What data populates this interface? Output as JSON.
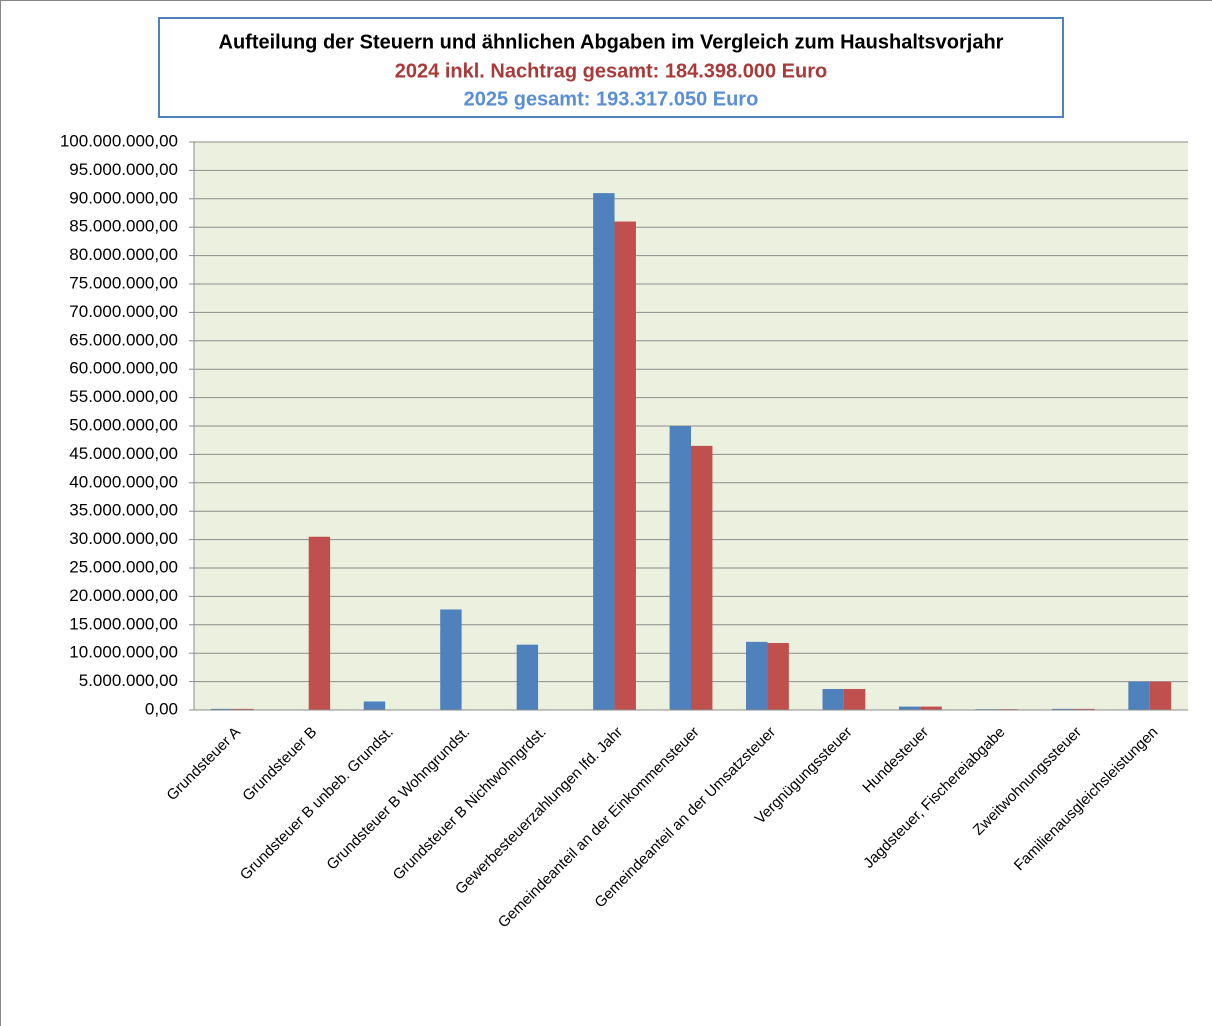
{
  "chart_data": {
    "type": "bar",
    "title": "Aufteilung der Steuern und ähnlichen Abgaben im Vergleich zum Haushaltsvorjahr",
    "subtitle": [
      "2024 inkl. Nachtrag gesamt: 184.398.000 Euro",
      "2025 gesamt: 193.317.050 Euro"
    ],
    "subtitle_colors": [
      "#a83b39",
      "#5a8ed5"
    ],
    "categories": [
      "Grundsteuer A",
      "Grundsteuer B",
      "Grundsteuer B unbeb. Grundst.",
      "Grundsteuer B Wohngrundst.",
      "Grundsteuer B Nichtwohngrdst.",
      "Gewerbesteuerzahlungen lfd. Jahr",
      "Gemeindeanteil an der Einkommensteuer",
      "Gemeindeanteil an der Umsatzsteuer",
      "Vergnügungssteuer",
      "Hundesteuer",
      "Jagdsteuer, Fischereiabgabe",
      "Zweitwohnungssteuer",
      "Familienausgleichsleistungen"
    ],
    "series": [
      {
        "color": "#4f81bd",
        "values": [
          200000,
          0,
          1500000,
          17700000,
          11500000,
          91000000,
          50000000,
          12000000,
          3700000,
          600000,
          150000,
          200000,
          5000000
        ]
      },
      {
        "color": "#c0504d",
        "values": [
          200000,
          30500000,
          0,
          0,
          0,
          86000000,
          46500000,
          11800000,
          3700000,
          600000,
          150000,
          200000,
          5000000
        ]
      }
    ],
    "ylim": [
      0,
      100000000
    ],
    "yticks": [
      {
        "value": 0,
        "label": "0,00"
      },
      {
        "value": 5000000,
        "label": "5.000.000,00"
      },
      {
        "value": 10000000,
        "label": "10.000.000,00"
      },
      {
        "value": 15000000,
        "label": "15.000.000,00"
      },
      {
        "value": 20000000,
        "label": "20.000.000,00"
      },
      {
        "value": 25000000,
        "label": "25.000.000,00"
      },
      {
        "value": 30000000,
        "label": "30.000.000,00"
      },
      {
        "value": 35000000,
        "label": "35.000.000,00"
      },
      {
        "value": 40000000,
        "label": "40.000.000,00"
      },
      {
        "value": 45000000,
        "label": "45.000.000,00"
      },
      {
        "value": 50000000,
        "label": "50.000.000,00"
      },
      {
        "value": 55000000,
        "label": "55.000.000,00"
      },
      {
        "value": 60000000,
        "label": "60.000.000,00"
      },
      {
        "value": 65000000,
        "label": "65.000.000,00"
      },
      {
        "value": 70000000,
        "label": "70.000.000,00"
      },
      {
        "value": 75000000,
        "label": "75.000.000,00"
      },
      {
        "value": 80000000,
        "label": "80.000.000,00"
      },
      {
        "value": 85000000,
        "label": "85.000.000,00"
      },
      {
        "value": 90000000,
        "label": "90.000.000,00"
      },
      {
        "value": 95000000,
        "label": "95.000.000,00"
      },
      {
        "value": 100000000,
        "label": "100.000.000,00"
      }
    ],
    "grid": true
  }
}
